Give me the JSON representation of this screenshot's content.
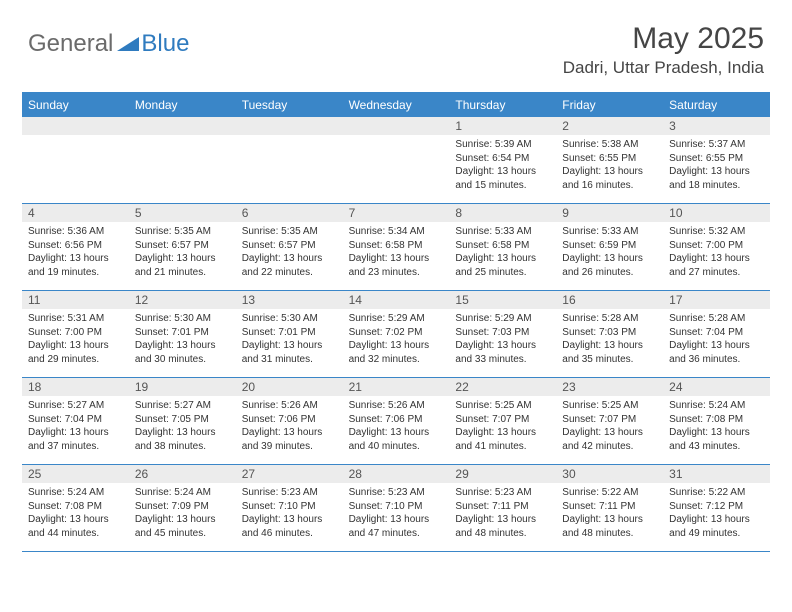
{
  "logo": {
    "general": "General",
    "blue": "Blue"
  },
  "title": "May 2025",
  "location": "Dadri, Uttar Pradesh, India",
  "colors": {
    "header_blue": "#3a86c8",
    "logo_blue": "#2f7bbf",
    "logo_gray": "#6b6b6b",
    "daynum_bg": "#ececec",
    "text": "#333333",
    "title_text": "#454545"
  },
  "weekdays": [
    "Sunday",
    "Monday",
    "Tuesday",
    "Wednesday",
    "Thursday",
    "Friday",
    "Saturday"
  ],
  "weeks": [
    [
      null,
      null,
      null,
      null,
      {
        "n": "1",
        "sr": "Sunrise: 5:39 AM",
        "ss": "Sunset: 6:54 PM",
        "dl": "Daylight: 13 hours and 15 minutes."
      },
      {
        "n": "2",
        "sr": "Sunrise: 5:38 AM",
        "ss": "Sunset: 6:55 PM",
        "dl": "Daylight: 13 hours and 16 minutes."
      },
      {
        "n": "3",
        "sr": "Sunrise: 5:37 AM",
        "ss": "Sunset: 6:55 PM",
        "dl": "Daylight: 13 hours and 18 minutes."
      }
    ],
    [
      {
        "n": "4",
        "sr": "Sunrise: 5:36 AM",
        "ss": "Sunset: 6:56 PM",
        "dl": "Daylight: 13 hours and 19 minutes."
      },
      {
        "n": "5",
        "sr": "Sunrise: 5:35 AM",
        "ss": "Sunset: 6:57 PM",
        "dl": "Daylight: 13 hours and 21 minutes."
      },
      {
        "n": "6",
        "sr": "Sunrise: 5:35 AM",
        "ss": "Sunset: 6:57 PM",
        "dl": "Daylight: 13 hours and 22 minutes."
      },
      {
        "n": "7",
        "sr": "Sunrise: 5:34 AM",
        "ss": "Sunset: 6:58 PM",
        "dl": "Daylight: 13 hours and 23 minutes."
      },
      {
        "n": "8",
        "sr": "Sunrise: 5:33 AM",
        "ss": "Sunset: 6:58 PM",
        "dl": "Daylight: 13 hours and 25 minutes."
      },
      {
        "n": "9",
        "sr": "Sunrise: 5:33 AM",
        "ss": "Sunset: 6:59 PM",
        "dl": "Daylight: 13 hours and 26 minutes."
      },
      {
        "n": "10",
        "sr": "Sunrise: 5:32 AM",
        "ss": "Sunset: 7:00 PM",
        "dl": "Daylight: 13 hours and 27 minutes."
      }
    ],
    [
      {
        "n": "11",
        "sr": "Sunrise: 5:31 AM",
        "ss": "Sunset: 7:00 PM",
        "dl": "Daylight: 13 hours and 29 minutes."
      },
      {
        "n": "12",
        "sr": "Sunrise: 5:30 AM",
        "ss": "Sunset: 7:01 PM",
        "dl": "Daylight: 13 hours and 30 minutes."
      },
      {
        "n": "13",
        "sr": "Sunrise: 5:30 AM",
        "ss": "Sunset: 7:01 PM",
        "dl": "Daylight: 13 hours and 31 minutes."
      },
      {
        "n": "14",
        "sr": "Sunrise: 5:29 AM",
        "ss": "Sunset: 7:02 PM",
        "dl": "Daylight: 13 hours and 32 minutes."
      },
      {
        "n": "15",
        "sr": "Sunrise: 5:29 AM",
        "ss": "Sunset: 7:03 PM",
        "dl": "Daylight: 13 hours and 33 minutes."
      },
      {
        "n": "16",
        "sr": "Sunrise: 5:28 AM",
        "ss": "Sunset: 7:03 PM",
        "dl": "Daylight: 13 hours and 35 minutes."
      },
      {
        "n": "17",
        "sr": "Sunrise: 5:28 AM",
        "ss": "Sunset: 7:04 PM",
        "dl": "Daylight: 13 hours and 36 minutes."
      }
    ],
    [
      {
        "n": "18",
        "sr": "Sunrise: 5:27 AM",
        "ss": "Sunset: 7:04 PM",
        "dl": "Daylight: 13 hours and 37 minutes."
      },
      {
        "n": "19",
        "sr": "Sunrise: 5:27 AM",
        "ss": "Sunset: 7:05 PM",
        "dl": "Daylight: 13 hours and 38 minutes."
      },
      {
        "n": "20",
        "sr": "Sunrise: 5:26 AM",
        "ss": "Sunset: 7:06 PM",
        "dl": "Daylight: 13 hours and 39 minutes."
      },
      {
        "n": "21",
        "sr": "Sunrise: 5:26 AM",
        "ss": "Sunset: 7:06 PM",
        "dl": "Daylight: 13 hours and 40 minutes."
      },
      {
        "n": "22",
        "sr": "Sunrise: 5:25 AM",
        "ss": "Sunset: 7:07 PM",
        "dl": "Daylight: 13 hours and 41 minutes."
      },
      {
        "n": "23",
        "sr": "Sunrise: 5:25 AM",
        "ss": "Sunset: 7:07 PM",
        "dl": "Daylight: 13 hours and 42 minutes."
      },
      {
        "n": "24",
        "sr": "Sunrise: 5:24 AM",
        "ss": "Sunset: 7:08 PM",
        "dl": "Daylight: 13 hours and 43 minutes."
      }
    ],
    [
      {
        "n": "25",
        "sr": "Sunrise: 5:24 AM",
        "ss": "Sunset: 7:08 PM",
        "dl": "Daylight: 13 hours and 44 minutes."
      },
      {
        "n": "26",
        "sr": "Sunrise: 5:24 AM",
        "ss": "Sunset: 7:09 PM",
        "dl": "Daylight: 13 hours and 45 minutes."
      },
      {
        "n": "27",
        "sr": "Sunrise: 5:23 AM",
        "ss": "Sunset: 7:10 PM",
        "dl": "Daylight: 13 hours and 46 minutes."
      },
      {
        "n": "28",
        "sr": "Sunrise: 5:23 AM",
        "ss": "Sunset: 7:10 PM",
        "dl": "Daylight: 13 hours and 47 minutes."
      },
      {
        "n": "29",
        "sr": "Sunrise: 5:23 AM",
        "ss": "Sunset: 7:11 PM",
        "dl": "Daylight: 13 hours and 48 minutes."
      },
      {
        "n": "30",
        "sr": "Sunrise: 5:22 AM",
        "ss": "Sunset: 7:11 PM",
        "dl": "Daylight: 13 hours and 48 minutes."
      },
      {
        "n": "31",
        "sr": "Sunrise: 5:22 AM",
        "ss": "Sunset: 7:12 PM",
        "dl": "Daylight: 13 hours and 49 minutes."
      }
    ]
  ]
}
